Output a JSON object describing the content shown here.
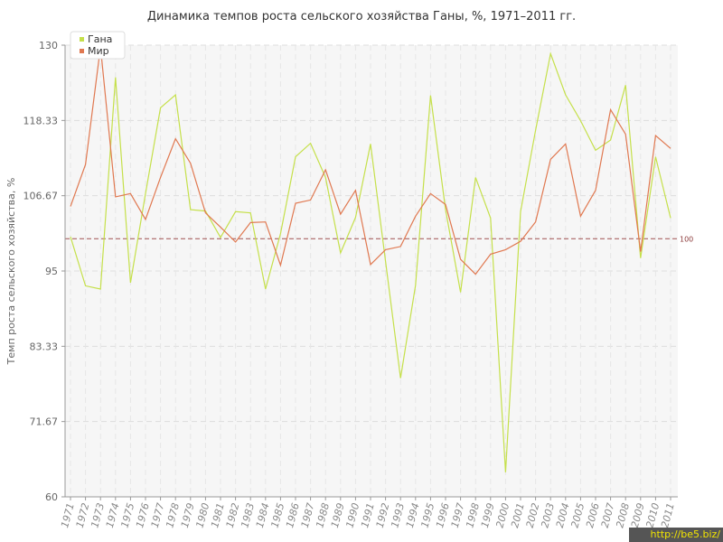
{
  "chart_data": {
    "type": "line",
    "title": "Динамика темпов роста сельского хозяйства Ганы, %, 1971–2011 гг.",
    "xlabel": "",
    "ylabel": "Темп роста сельского хозяйства, %",
    "ylim": [
      60,
      130
    ],
    "yticks": [
      "60",
      "71.67",
      "83.33",
      "95",
      "106.67",
      "118.33",
      "130"
    ],
    "grid": true,
    "legend_position": "top-left",
    "reference_line": {
      "value": 100,
      "label": "100",
      "color": "#a05050"
    },
    "x": [
      "1971",
      "1972",
      "1973",
      "1974",
      "1975",
      "1976",
      "1977",
      "1978",
      "1979",
      "1980",
      "1981",
      "1982",
      "1983",
      "1984",
      "1985",
      "1986",
      "1987",
      "1988",
      "1989",
      "1990",
      "1991",
      "1992",
      "1993",
      "1994",
      "1995",
      "1996",
      "1997",
      "1998",
      "1999",
      "2000",
      "2001",
      "2002",
      "2003",
      "2004",
      "2005",
      "2006",
      "2007",
      "2008",
      "2009",
      "2010",
      "2011"
    ],
    "series": [
      {
        "name": "Гана",
        "color": "#c5e04a",
        "values": [
          100.3,
          92.7,
          92.2,
          125.0,
          93.2,
          107.0,
          120.3,
          122.3,
          104.5,
          104.3,
          100.2,
          104.2,
          104.0,
          92.2,
          100.8,
          112.7,
          114.8,
          109.5,
          97.8,
          103.3,
          114.7,
          96.5,
          78.4,
          92.8,
          122.2,
          104.5,
          91.7,
          109.5,
          103.2,
          63.8,
          104.2,
          116.8,
          128.7,
          122.3,
          118.3,
          113.7,
          115.3,
          123.8,
          97.0,
          112.7,
          103.2
        ]
      },
      {
        "name": "Мир",
        "color": "#e07850",
        "values": [
          105.0,
          111.5,
          129.7,
          106.5,
          107.0,
          103.0,
          109.5,
          115.5,
          111.7,
          104.0,
          101.8,
          99.5,
          102.5,
          102.6,
          95.9,
          105.5,
          106.0,
          110.7,
          103.8,
          107.5,
          96.0,
          98.3,
          98.8,
          103.5,
          107.0,
          105.3,
          96.8,
          94.5,
          97.6,
          98.3,
          99.6,
          102.6,
          112.3,
          114.7,
          103.5,
          107.5,
          120.0,
          116.2,
          98.0,
          116.0,
          114.0
        ]
      }
    ]
  },
  "watermark": "http://be5.biz/"
}
